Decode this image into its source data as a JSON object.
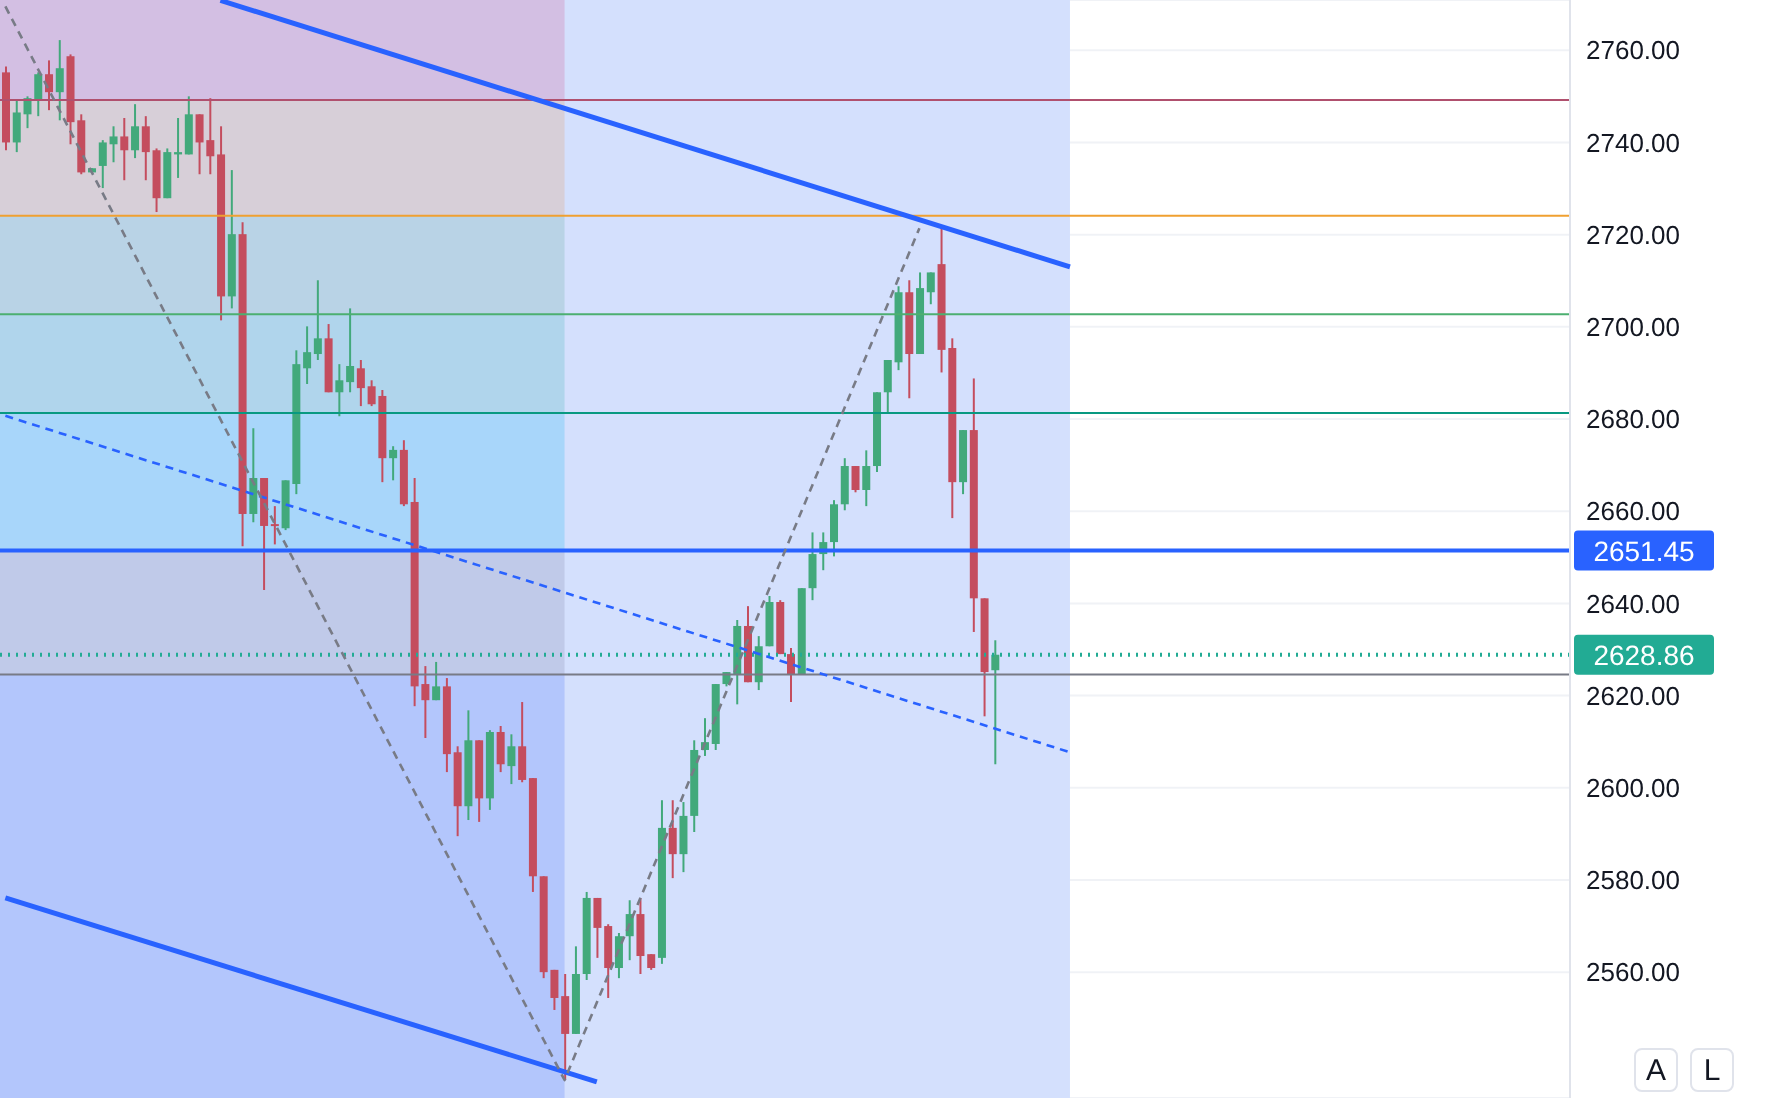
{
  "chart_data": {
    "type": "candlestick",
    "categories": [
      null,
      null,
      null,
      null,
      null,
      null,
      null,
      null,
      null,
      null,
      null,
      null,
      null,
      null,
      null,
      null,
      null,
      null,
      null,
      null,
      null,
      null,
      null,
      null,
      null,
      null,
      null,
      null,
      null,
      null,
      null,
      null,
      null,
      null,
      null,
      null,
      null,
      null,
      null,
      null,
      null,
      null,
      null,
      null,
      null,
      null,
      null,
      null,
      null,
      null,
      null,
      null,
      null,
      null,
      null,
      null,
      null,
      null,
      null,
      null,
      null,
      null,
      null,
      null,
      null,
      null,
      null,
      null,
      null,
      null,
      null,
      null,
      null,
      null,
      null,
      null,
      null,
      null,
      null,
      null,
      null,
      null,
      null,
      null,
      null,
      null,
      null,
      null,
      null,
      null,
      null,
      null,
      null,
      null,
      null,
      null,
      null,
      null,
      null,
      null,
      null,
      null,
      null,
      null,
      null,
      null,
      null,
      null,
      null,
      null,
      null,
      null,
      null,
      null,
      null,
      null,
      null,
      null,
      null,
      null,
      null,
      null,
      null,
      null,
      null,
      null,
      null,
      null,
      null,
      null,
      null,
      null,
      null,
      null,
      null,
      null,
      null,
      null,
      null,
      null,
      null,
      null,
      null,
      null,
      null,
      null
    ],
    "ohlc": [
      [
        2755.2,
        2756.5,
        2738.3,
        2740.0
      ],
      [
        2740.0,
        2749.2,
        2737.9,
        2746.5
      ],
      [
        2746.1,
        2750.0,
        2743.1,
        2749.6
      ],
      [
        2749.2,
        2755.2,
        2745.7,
        2754.8
      ],
      [
        2754.8,
        2757.8,
        2747.0,
        2750.9
      ],
      [
        2750.9,
        2762.2,
        2744.8,
        2756.1
      ],
      [
        2758.7,
        2759.1,
        2739.6,
        2744.4
      ],
      [
        2744.8,
        2746.1,
        2733.1,
        2733.5
      ],
      [
        2733.5,
        2734.4,
        2733.5,
        2734.4
      ],
      [
        2734.9,
        2740.5,
        2730.1,
        2740.0
      ],
      [
        2739.6,
        2743.5,
        2735.7,
        2741.3
      ],
      [
        2741.3,
        2745.3,
        2731.8,
        2738.3
      ],
      [
        2738.3,
        2748.3,
        2736.6,
        2743.5
      ],
      [
        2743.5,
        2745.7,
        2731.8,
        2737.9
      ],
      [
        2738.3,
        2738.7,
        2724.9,
        2727.9
      ],
      [
        2727.9,
        2738.7,
        2727.9,
        2737.9
      ],
      [
        2737.4,
        2745.3,
        2732.3,
        2737.9
      ],
      [
        2737.4,
        2750.0,
        2737.4,
        2746.1
      ],
      [
        2746.1,
        2746.1,
        2733.1,
        2740.0
      ],
      [
        2740.5,
        2749.6,
        2733.1,
        2737.0
      ],
      [
        2737.4,
        2743.5,
        2701.4,
        2706.6
      ],
      [
        2706.6,
        2734.0,
        2704.0,
        2720.1
      ],
      [
        2720.1,
        2722.7,
        2652.4,
        2659.4
      ],
      [
        2659.4,
        2678.0,
        2657.6,
        2667.2
      ],
      [
        2667.2,
        2667.2,
        2642.9,
        2656.8
      ],
      [
        2657.2,
        2661.1,
        2652.8,
        2656.8
      ],
      [
        2656.3,
        2666.7,
        2655.9,
        2666.7
      ],
      [
        2665.9,
        2694.9,
        2663.7,
        2691.9
      ],
      [
        2691.0,
        2700.1,
        2687.6,
        2694.5
      ],
      [
        2694.1,
        2710.1,
        2692.8,
        2697.5
      ],
      [
        2697.5,
        2700.6,
        2685.8,
        2685.8
      ],
      [
        2685.8,
        2691.9,
        2680.6,
        2688.4
      ],
      [
        2688.0,
        2704.0,
        2685.8,
        2691.5
      ],
      [
        2691.0,
        2692.8,
        2682.8,
        2686.7
      ],
      [
        2687.1,
        2688.4,
        2682.8,
        2683.2
      ],
      [
        2685.0,
        2686.3,
        2666.3,
        2671.5
      ],
      [
        2671.5,
        2674.1,
        2666.7,
        2673.3
      ],
      [
        2673.3,
        2675.4,
        2661.1,
        2661.5
      ],
      [
        2662.0,
        2667.2,
        2617.7,
        2622.0
      ],
      [
        2622.5,
        2626.4,
        2610.8,
        2619.0
      ],
      [
        2619.0,
        2627.3,
        2619.0,
        2622.0
      ],
      [
        2622.0,
        2623.8,
        2603.4,
        2607.3
      ],
      [
        2607.7,
        2609.0,
        2589.5,
        2596.0
      ],
      [
        2596.0,
        2616.8,
        2593.0,
        2610.3
      ],
      [
        2610.3,
        2610.3,
        2592.6,
        2597.7
      ],
      [
        2597.7,
        2612.5,
        2595.2,
        2612.1
      ],
      [
        2612.1,
        2613.4,
        2603.4,
        2605.1
      ],
      [
        2604.7,
        2611.6,
        2600.8,
        2609.0
      ],
      [
        2609.0,
        2618.6,
        2601.2,
        2601.7
      ],
      [
        2602.1,
        2602.1,
        2577.4,
        2580.8
      ],
      [
        2580.8,
        2580.8,
        2558.7,
        2560.0
      ],
      [
        2560.5,
        2560.5,
        2551.8,
        2554.4
      ],
      [
        2554.8,
        2559.6,
        2536.6,
        2546.6
      ],
      [
        2546.6,
        2565.6,
        2546.6,
        2559.6
      ],
      [
        2559.6,
        2577.4,
        2558.3,
        2576.1
      ],
      [
        2576.1,
        2576.1,
        2563.1,
        2569.6
      ],
      [
        2570.0,
        2570.4,
        2554.4,
        2560.9
      ],
      [
        2560.9,
        2568.5,
        2558.7,
        2567.8
      ],
      [
        2567.8,
        2575.6,
        2562.6,
        2572.6
      ],
      [
        2572.6,
        2576.1,
        2559.6,
        2563.5
      ],
      [
        2563.9,
        2563.9,
        2560.5,
        2560.9
      ],
      [
        2563.1,
        2597.3,
        2561.8,
        2591.3
      ],
      [
        2591.3,
        2597.3,
        2580.4,
        2585.6
      ],
      [
        2585.6,
        2596.9,
        2581.7,
        2593.9
      ],
      [
        2593.9,
        2610.3,
        2590.4,
        2608.2
      ],
      [
        2608.2,
        2615.1,
        2606.9,
        2609.9
      ],
      [
        2609.5,
        2622.5,
        2608.2,
        2622.5
      ],
      [
        2622.5,
        2625.1,
        2622.0,
        2625.1
      ],
      [
        2624.6,
        2636.4,
        2618.1,
        2635.1
      ],
      [
        2635.1,
        2639.4,
        2622.9,
        2622.9
      ],
      [
        2622.9,
        2632.9,
        2621.2,
        2630.7
      ],
      [
        2630.7,
        2641.6,
        2630.7,
        2640.3
      ],
      [
        2640.3,
        2640.7,
        2629.0,
        2629.0
      ],
      [
        2629.0,
        2630.3,
        2618.6,
        2624.6
      ],
      [
        2624.6,
        2643.3,
        2624.6,
        2643.3
      ],
      [
        2643.3,
        2655.4,
        2640.7,
        2650.7
      ],
      [
        2650.7,
        2655.4,
        2647.2,
        2653.3
      ],
      [
        2653.3,
        2662.4,
        2650.2,
        2661.5
      ],
      [
        2661.5,
        2671.5,
        2660.2,
        2669.8
      ],
      [
        2669.8,
        2669.8,
        2664.1,
        2664.6
      ],
      [
        2664.6,
        2673.2,
        2661.1,
        2669.8
      ],
      [
        2669.8,
        2685.8,
        2668.5,
        2685.8
      ],
      [
        2685.8,
        2692.8,
        2681.5,
        2692.8
      ],
      [
        2692.3,
        2708.8,
        2690.6,
        2707.5
      ],
      [
        2707.5,
        2710.1,
        2684.5,
        2694.1
      ],
      [
        2694.1,
        2711.8,
        2694.1,
        2708.4
      ],
      [
        2707.5,
        2711.8,
        2704.9,
        2711.8
      ],
      [
        2713.6,
        2721.4,
        2690.1,
        2695.0
      ],
      [
        2695.4,
        2697.5,
        2658.5,
        2666.3
      ],
      [
        2666.3,
        2677.6,
        2663.7,
        2677.6
      ],
      [
        2677.6,
        2688.8,
        2633.8,
        2641.1
      ],
      [
        2641.1,
        2641.1,
        2615.5,
        2625.1
      ],
      [
        2625.5,
        2632.0,
        2605.1,
        2628.86
      ],
      null,
      null,
      null,
      null,
      null,
      null,
      null,
      null,
      null,
      null,
      null,
      null,
      null,
      null,
      null,
      null,
      null,
      null,
      null,
      null,
      null,
      null,
      null,
      null,
      null,
      null,
      null,
      null,
      null,
      null,
      null,
      null,
      null,
      null,
      null,
      null,
      null,
      null,
      null,
      null,
      null,
      null,
      null,
      null,
      null,
      null,
      null,
      null,
      null,
      null,
      null,
      null,
      null
    ],
    "colors": [
      "#c44d5e",
      "#42a97b",
      "#42a97b",
      "#42a97b",
      "#c44d5e",
      "#42a97b",
      "#c44d5e",
      "#c44d5e",
      "#42a97b",
      "#42a97b",
      "#42a97b",
      "#c44d5e",
      "#42a97b",
      "#c44d5e",
      "#c44d5e",
      "#42a97b",
      "#42a97b",
      "#42a97b",
      "#c44d5e",
      "#c44d5e",
      "#c44d5e",
      "#42a97b",
      "#c44d5e",
      "#42a97b",
      "#c44d5e",
      "#c44d5e",
      "#42a97b",
      "#42a97b",
      "#42a97b",
      "#42a97b",
      "#c44d5e",
      "#42a97b",
      "#42a97b",
      "#c44d5e",
      "#c44d5e",
      "#c44d5e",
      "#42a97b",
      "#c44d5e",
      "#c44d5e",
      "#c44d5e",
      "#42a97b",
      "#c44d5e",
      "#c44d5e",
      "#42a97b",
      "#c44d5e",
      "#42a97b",
      "#c44d5e",
      "#42a97b",
      "#c44d5e",
      "#c44d5e",
      "#c44d5e",
      "#c44d5e",
      "#c44d5e",
      "#42a97b",
      "#42a97b",
      "#c44d5e",
      "#c44d5e",
      "#42a97b",
      "#42a97b",
      "#c44d5e",
      "#c44d5e",
      "#42a97b",
      "#c44d5e",
      "#42a97b",
      "#42a97b",
      "#42a97b",
      "#42a97b",
      "#42a97b",
      "#42a97b",
      "#c44d5e",
      "#42a97b",
      "#42a97b",
      "#c44d5e",
      "#c44d5e",
      "#42a97b",
      "#42a97b",
      "#42a97b",
      "#42a97b",
      "#42a97b",
      "#c44d5e",
      "#42a97b",
      "#42a97b",
      "#42a97b",
      "#42a97b",
      "#c44d5e",
      "#42a97b",
      "#42a97b",
      "#c44d5e",
      "#c44d5e",
      "#42a97b",
      "#c44d5e",
      "#c44d5e",
      "#42a97b",
      null,
      null,
      null,
      null,
      null,
      null,
      null,
      null,
      null,
      null,
      null,
      null,
      null,
      null,
      null,
      null,
      null,
      null,
      null,
      null,
      null,
      null,
      null,
      null,
      null,
      null,
      null,
      null,
      null,
      null,
      null,
      null,
      null,
      null,
      null,
      null,
      null,
      null,
      null,
      null,
      null,
      null,
      null,
      null,
      null,
      null,
      null,
      null,
      null,
      null,
      null,
      null,
      null
    ],
    "series": [
      {
        "type": "line",
        "values": [
          null,
          null,
          null,
          null,
          null,
          null,
          null,
          null,
          null,
          null,
          null,
          null,
          null,
          null,
          null,
          null,
          null,
          null,
          null,
          null,
          2770.8,
          null,
          null,
          null,
          null,
          null,
          null,
          null,
          null,
          null,
          null,
          null,
          null,
          null,
          null,
          null,
          null,
          null,
          null,
          null,
          null,
          null,
          null,
          null,
          null,
          null,
          null,
          null,
          null,
          null,
          null,
          null,
          null,
          null,
          null,
          null,
          null,
          null,
          null,
          null,
          null,
          null,
          null,
          null,
          null,
          null,
          null,
          null,
          null,
          null,
          null,
          null,
          null,
          null,
          null,
          null,
          null,
          null,
          null,
          null,
          null,
          null,
          null,
          null,
          null,
          null,
          null,
          null,
          null,
          null,
          null,
          null,
          null,
          null,
          null,
          null,
          null,
          null,
          null,
          2713.0,
          null,
          null,
          null,
          null,
          null,
          null,
          null,
          null,
          null,
          null,
          null,
          null,
          null,
          null,
          null,
          null,
          null,
          null,
          null,
          null,
          null,
          null,
          null,
          null,
          null,
          null,
          null,
          null,
          null,
          null,
          null,
          null,
          null,
          null,
          null,
          null,
          null,
          null,
          null,
          null,
          null,
          null,
          null,
          null,
          null,
          null
        ],
        "color": "#2962ff",
        "line_style": "solid"
      },
      {
        "type": "line",
        "values": [
          2576.1,
          null,
          null,
          null,
          null,
          null,
          null,
          null,
          null,
          null,
          null,
          null,
          null,
          null,
          null,
          null,
          null,
          null,
          null,
          null,
          null,
          null,
          null,
          null,
          null,
          null,
          null,
          null,
          null,
          null,
          null,
          null,
          null,
          null,
          null,
          null,
          null,
          null,
          null,
          null,
          null,
          null,
          null,
          null,
          null,
          null,
          null,
          null,
          null,
          null,
          null,
          null,
          null,
          null,
          null,
          2536.2,
          null,
          null,
          null,
          null,
          null,
          null,
          null,
          null,
          null,
          null,
          null,
          null,
          null,
          null,
          null,
          null,
          null,
          null,
          null,
          null,
          null,
          null,
          null,
          null,
          null,
          null,
          null,
          null,
          null,
          null,
          null,
          null,
          null,
          null,
          null,
          null,
          null,
          null,
          null,
          null,
          null,
          null,
          null,
          null,
          null,
          null,
          null,
          null,
          null,
          null,
          null,
          null,
          null,
          null,
          null,
          null,
          null,
          null,
          null,
          null,
          null,
          null,
          null,
          null,
          null,
          null,
          null,
          null,
          null,
          null,
          null,
          null,
          null,
          null,
          null,
          null,
          null,
          null,
          null,
          null,
          null,
          null,
          null,
          null,
          null,
          null,
          null,
          null,
          null,
          null
        ],
        "color": "#2962ff",
        "line_style": "solid"
      },
      {
        "type": "line",
        "values": [
          2680.7,
          null,
          null,
          null,
          null,
          null,
          null,
          null,
          null,
          null,
          null,
          null,
          null,
          null,
          null,
          null,
          null,
          null,
          null,
          null,
          null,
          null,
          null,
          null,
          null,
          null,
          null,
          null,
          null,
          null,
          null,
          null,
          null,
          null,
          null,
          null,
          null,
          null,
          null,
          null,
          null,
          null,
          null,
          null,
          null,
          null,
          null,
          null,
          null,
          null,
          null,
          null,
          null,
          null,
          null,
          null,
          null,
          null,
          null,
          null,
          null,
          null,
          null,
          null,
          null,
          null,
          null,
          null,
          null,
          null,
          null,
          null,
          null,
          null,
          null,
          null,
          null,
          null,
          null,
          null,
          null,
          null,
          null,
          null,
          null,
          null,
          null,
          null,
          null,
          null,
          null,
          null,
          null,
          null,
          null,
          null,
          null,
          null,
          null,
          2607.7,
          null,
          null,
          null,
          null,
          null,
          null,
          null,
          null,
          null,
          null,
          null,
          null,
          null,
          null,
          null,
          null,
          null,
          null,
          null,
          null,
          null,
          null,
          null,
          null,
          null,
          null,
          null,
          null,
          null,
          null,
          null,
          null,
          null,
          null,
          null,
          null,
          null,
          null,
          null,
          null,
          null,
          null,
          null,
          null,
          null,
          null
        ],
        "color": "#2962ff",
        "line_style": "dashed"
      },
      {
        "type": "line",
        "values": [
          2769.5,
          null,
          null,
          null,
          null,
          null,
          null,
          null,
          null,
          null,
          null,
          null,
          null,
          null,
          null,
          null,
          null,
          null,
          null,
          null,
          null,
          null,
          null,
          null,
          null,
          null,
          null,
          null,
          null,
          null,
          null,
          null,
          null,
          null,
          null,
          null,
          null,
          null,
          null,
          null,
          null,
          null,
          null,
          null,
          null,
          null,
          null,
          null,
          null,
          null,
          null,
          null,
          2536.6,
          null,
          null,
          null,
          null,
          null,
          null,
          null,
          null,
          null,
          null,
          null,
          null,
          null,
          null,
          null,
          null,
          null,
          null,
          null,
          null,
          null,
          null,
          null,
          null,
          null,
          null,
          null,
          null,
          null,
          null,
          null,
          null,
          2721.4,
          null,
          null,
          null,
          null,
          null,
          null,
          null,
          null,
          null,
          null,
          null,
          null,
          null,
          null,
          null,
          null,
          null,
          null,
          null,
          null,
          null,
          null,
          null,
          null,
          null,
          null,
          null,
          null,
          null,
          null,
          null,
          null,
          null,
          null,
          null,
          null,
          null,
          null,
          null,
          null,
          null,
          null,
          null,
          null,
          null,
          null,
          null,
          null,
          null,
          null,
          null,
          null,
          null,
          null,
          null,
          null,
          null,
          null,
          null,
          null
        ],
        "color": "#787b86",
        "line_style": "dashed"
      }
    ],
    "bands": [
      {
        "axis": "y",
        "from": 2749.2,
        "to": 2770.9,
        "color": "#d3bfe3"
      },
      {
        "axis": "y",
        "from": 2724.1,
        "to": 2749.2,
        "color": "#d7cfd8"
      },
      {
        "axis": "y",
        "from": 2702.7,
        "to": 2724.1,
        "color": "#b9d3e6"
      },
      {
        "axis": "y",
        "from": 2681.3,
        "to": 2702.7,
        "color": "#b0d5ec"
      },
      {
        "axis": "y",
        "from": 2651.45,
        "to": 2681.3,
        "color": "#a8d6fa"
      },
      {
        "axis": "y",
        "from": 2624.6,
        "to": 2651.45,
        "color": "#c0cae9"
      },
      {
        "axis": "y",
        "from": 2532.7,
        "to": 2624.6,
        "color": "#b3c6fc"
      }
    ],
    "ref_lines": [
      {
        "axis": "y",
        "value": 2749.2,
        "color": "#b0506e",
        "line_style": "solid"
      },
      {
        "axis": "y",
        "value": 2724.1,
        "color": "#f0a030",
        "line_style": "solid"
      },
      {
        "axis": "y",
        "value": 2702.7,
        "color": "#4caf70",
        "line_style": "solid"
      },
      {
        "axis": "y",
        "value": 2681.3,
        "color": "#089981",
        "line_style": "solid"
      },
      {
        "axis": "y",
        "value": 2624.6,
        "color": "#787b86",
        "line_style": "solid"
      },
      {
        "axis": "y",
        "value": 2651.45,
        "label": "2651.45",
        "color": "#2962ff",
        "line_style": "solid"
      },
      {
        "axis": "y",
        "value": 2628.86,
        "label": "2628.86",
        "color": "#22ab94",
        "line_style": "dotted"
      }
    ],
    "ylim": [
      2532.7,
      2770.9
    ],
    "yticks": [
      {
        "value": 2560,
        "label": "2560.00"
      },
      {
        "value": 2580,
        "label": "2580.00"
      },
      {
        "value": 2600,
        "label": "2600.00"
      },
      {
        "value": 2620,
        "label": "2620.00"
      },
      {
        "value": 2640,
        "label": "2640.00"
      },
      {
        "value": 2660,
        "label": "2660.00"
      },
      {
        "value": 2680,
        "label": "2680.00"
      },
      {
        "value": 2700,
        "label": "2700.00"
      },
      {
        "value": 2720,
        "label": "2720.00"
      },
      {
        "value": 2740,
        "label": "2740.00"
      },
      {
        "value": 2760,
        "label": "2760.00"
      }
    ],
    "tick_labels": "y",
    "grid": "y",
    "annotations": [
      "A",
      "L"
    ]
  }
}
